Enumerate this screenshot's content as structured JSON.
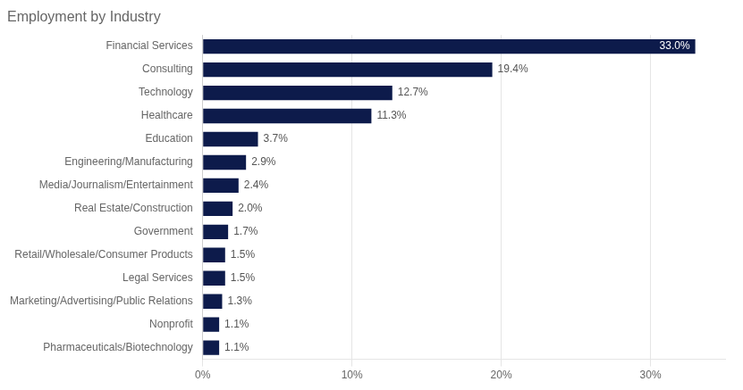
{
  "chart_data": {
    "type": "bar",
    "orientation": "horizontal",
    "title": "Employment by Industry",
    "categories": [
      "Pharmaceuticals/Biotechnology",
      "Nonprofit",
      "Marketing/Advertising/Public Relations",
      "Legal Services",
      "Retail/Wholesale/Consumer Products",
      "Government",
      "Real Estate/Construction",
      "Media/Journalism/Entertainment",
      "Engineering/Manufacturing",
      "Education",
      "Healthcare",
      "Technology",
      "Consulting",
      "Financial Services"
    ],
    "values": [
      1.1,
      1.1,
      1.3,
      1.5,
      1.5,
      1.7,
      2.0,
      2.4,
      2.9,
      3.7,
      11.3,
      12.7,
      19.4,
      33.0
    ],
    "value_labels": [
      "1.1%",
      "1.1%",
      "1.3%",
      "1.5%",
      "1.5%",
      "1.7%",
      "2.0%",
      "2.4%",
      "2.9%",
      "3.7%",
      "11.3%",
      "12.7%",
      "19.4%",
      "33.0%"
    ],
    "color": "#0d1b4b",
    "xlim": [
      0,
      35
    ],
    "xticks": [
      {
        "value": 0,
        "label": "0%"
      },
      {
        "value": 10,
        "label": "10%"
      },
      {
        "value": 20,
        "label": "20%"
      },
      {
        "value": 30,
        "label": "30%"
      }
    ],
    "grid": true,
    "data_labels": true
  }
}
